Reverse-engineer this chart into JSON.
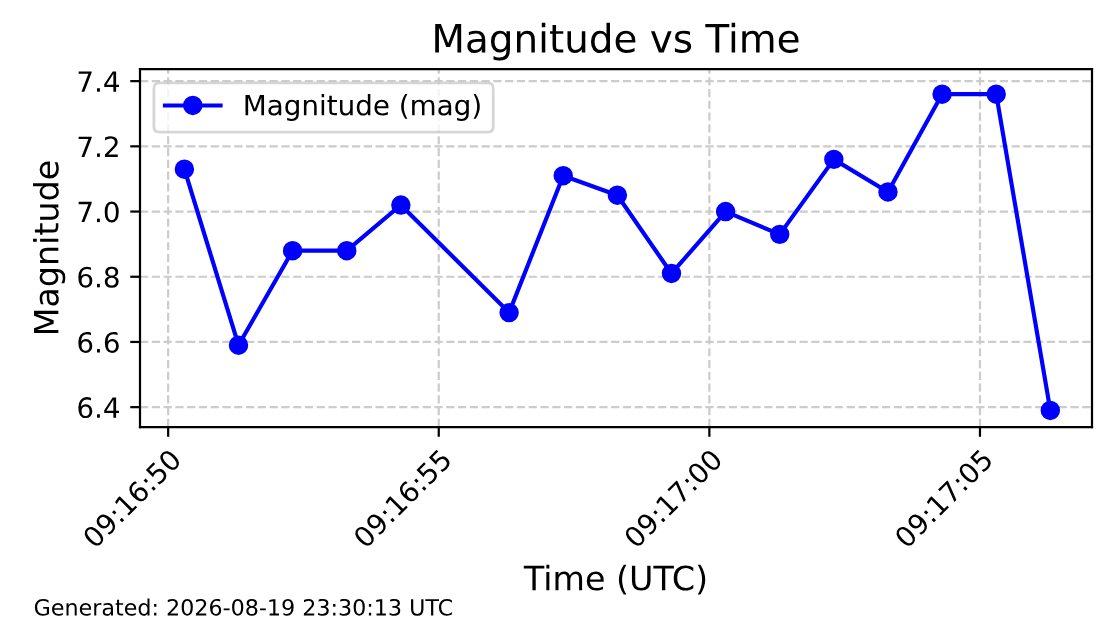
{
  "chart_data": {
    "type": "line",
    "title": "Magnitude vs Time",
    "xlabel": "Time (UTC)",
    "ylabel": "Magnitude",
    "x": [
      9.2806389,
      9.2809167,
      9.2811944,
      9.2814722,
      9.28175,
      9.2823056,
      9.2825833,
      9.2828611,
      9.2831389,
      9.2834167,
      9.2836944,
      9.2839722,
      9.28425,
      9.2845278,
      9.2848056,
      9.2850833
    ],
    "series": [
      {
        "name": "Magnitude (mag)",
        "color": "#0000ff",
        "values": [
          7.13,
          6.59,
          6.88,
          6.88,
          7.02,
          6.69,
          7.11,
          7.05,
          6.81,
          7.0,
          6.93,
          7.16,
          7.06,
          7.36,
          7.36,
          6.39
        ]
      }
    ],
    "xlim": [
      9.2804111,
      9.2852972
    ],
    "xticks": [
      {
        "value": 9.2805556,
        "label": "09:16:50"
      },
      {
        "value": 9.2819444,
        "label": "09:16:55"
      },
      {
        "value": 9.2833333,
        "label": "09:17:00"
      },
      {
        "value": 9.2847222,
        "label": "09:17:05"
      }
    ],
    "ylim": [
      6.339,
      7.437
    ],
    "yticks": [
      6.4,
      6.6,
      6.8,
      {
        "value": 7.0,
        "label": "7.0"
      },
      7.2,
      7.4
    ],
    "grid": true,
    "legend": "top left",
    "marker": "circle",
    "line_style": "solid",
    "annotations": [
      "Generated: 2026-08-19 23:30:13 UTC"
    ]
  }
}
